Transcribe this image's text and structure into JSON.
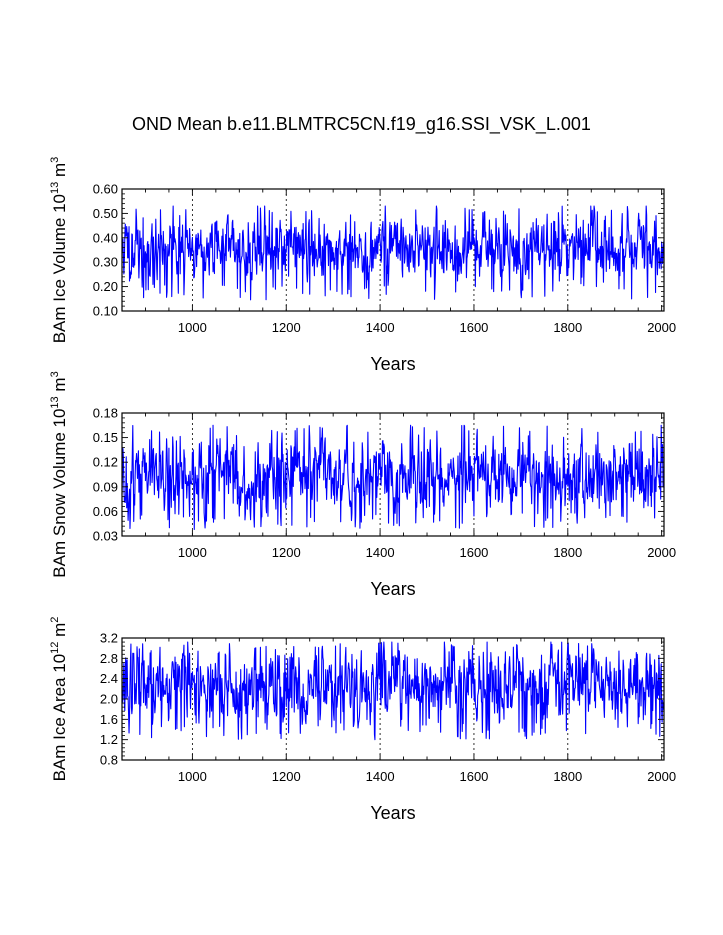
{
  "title": "OND Mean b.e11.BLMTRC5CN.f19_g16.SSI_VSK_L.001",
  "chart_data": [
    {
      "type": "line",
      "title": "",
      "xlabel": "Years",
      "ylabel": "BAm Ice Volume 10",
      "ylabel_sup": "13",
      "ylabel_unit": " m",
      "ylabel_unit_sup": "3",
      "xlim": [
        850,
        2005
      ],
      "ylim": [
        0.1,
        0.6
      ],
      "xticks": [
        1000,
        1200,
        1400,
        1600,
        1800,
        2000
      ],
      "yticks": [
        "0.10",
        "0.20",
        "0.30",
        "0.40",
        "0.50",
        "0.60"
      ],
      "ytick_values": [
        0.1,
        0.2,
        0.3,
        0.4,
        0.5,
        0.6
      ],
      "grid_x": [
        1000,
        1200,
        1400,
        1600,
        1800
      ],
      "color": "#0000ff",
      "series_stats": {
        "start_year": 850,
        "end_year": 2005,
        "mean": 0.355,
        "min": 0.145,
        "max": 0.53
      }
    },
    {
      "type": "line",
      "title": "",
      "xlabel": "Years",
      "ylabel": "BAm Snow Volume 10",
      "ylabel_sup": "13",
      "ylabel_unit": " m",
      "ylabel_unit_sup": "3",
      "xlim": [
        850,
        2005
      ],
      "ylim": [
        0.03,
        0.18
      ],
      "xticks": [
        1000,
        1200,
        1400,
        1600,
        1800,
        2000
      ],
      "yticks": [
        "0.03",
        "0.06",
        "0.09",
        "0.12",
        "0.15",
        "0.18"
      ],
      "ytick_values": [
        0.03,
        0.06,
        0.09,
        0.12,
        0.15,
        0.18
      ],
      "grid_x": [
        1000,
        1200,
        1400,
        1600,
        1800
      ],
      "color": "#0000ff",
      "series_stats": {
        "start_year": 850,
        "end_year": 2005,
        "mean": 0.105,
        "min": 0.038,
        "max": 0.165
      }
    },
    {
      "type": "line",
      "title": "",
      "xlabel": "Years",
      "ylabel": "BAm Ice Area 10",
      "ylabel_sup": "12",
      "ylabel_unit": " m",
      "ylabel_unit_sup": "2",
      "xlim": [
        850,
        2005
      ],
      "ylim": [
        0.8,
        3.2
      ],
      "xticks": [
        1000,
        1200,
        1400,
        1600,
        1800,
        2000
      ],
      "yticks": [
        "0.8",
        "1.2",
        "1.6",
        "2.0",
        "2.4",
        "2.8",
        "3.2"
      ],
      "ytick_values": [
        0.8,
        1.2,
        1.6,
        2.0,
        2.4,
        2.8,
        3.2
      ],
      "grid_x": [
        1000,
        1200,
        1400,
        1600,
        1800
      ],
      "color": "#0000ff",
      "series_stats": {
        "start_year": 850,
        "end_year": 2005,
        "mean": 2.3,
        "min": 1.2,
        "max": 3.12
      }
    }
  ]
}
